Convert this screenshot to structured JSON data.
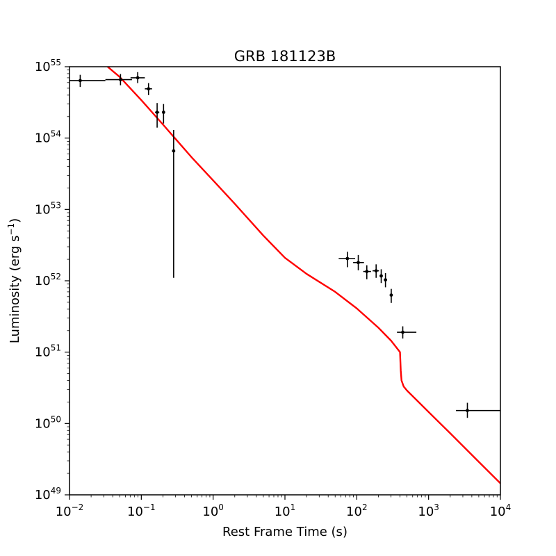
{
  "chart_data": {
    "type": "scatter",
    "title": "GRB 181123B",
    "xlabel": "Rest Frame Time (s)",
    "ylabel": {
      "base": "Luminosity (erg s",
      "sup": "−1",
      "tail": ")"
    },
    "xscale": "log",
    "yscale": "log",
    "xlim": [
      0.01,
      10000
    ],
    "ylim": [
      1e+49,
      1e+55
    ],
    "grid": false,
    "x_ticks": [
      {
        "base": "10",
        "exp": "−2",
        "value": 0.01
      },
      {
        "base": "10",
        "exp": "−1",
        "value": 0.1
      },
      {
        "base": "10",
        "exp": "0",
        "value": 1
      },
      {
        "base": "10",
        "exp": "1",
        "value": 10
      },
      {
        "base": "10",
        "exp": "2",
        "value": 100
      },
      {
        "base": "10",
        "exp": "3",
        "value": 1000
      },
      {
        "base": "10",
        "exp": "4",
        "value": 10000
      }
    ],
    "y_ticks": [
      {
        "base": "10",
        "exp": "49",
        "value": 1e+49
      },
      {
        "base": "10",
        "exp": "50",
        "value": 1e+50
      },
      {
        "base": "10",
        "exp": "51",
        "value": 1e+51
      },
      {
        "base": "10",
        "exp": "52",
        "value": 1e+52
      },
      {
        "base": "10",
        "exp": "53",
        "value": 1e+53
      },
      {
        "base": "10",
        "exp": "54",
        "value": 1e+54
      },
      {
        "base": "10",
        "exp": "55",
        "value": 1e+55
      }
    ],
    "points": [
      {
        "x": 0.0141,
        "y": 6.4e+54,
        "xerr": [
          0.01,
          0.0316
        ],
        "yerr": [
          5.2e+54,
          7.7e+54
        ]
      },
      {
        "x": 0.0513,
        "y": 6.6e+54,
        "xerr": [
          0.0316,
          0.0741
        ],
        "yerr": [
          5.5e+54,
          7.9e+54
        ]
      },
      {
        "x": 0.0891,
        "y": 7e+54,
        "xerr": [
          0.0708,
          0.112
        ],
        "yerr": [
          5.9e+54,
          8.4e+54
        ]
      },
      {
        "x": 0.126,
        "y": 4.9e+54,
        "xerr": [
          0.112,
          0.141
        ],
        "yerr": [
          4e+54,
          5.9e+54
        ]
      },
      {
        "x": 0.166,
        "y": 2.3e+54,
        "xerr": [
          0.155,
          0.178
        ],
        "yerr": [
          1.4e+54,
          3.1e+54
        ]
      },
      {
        "x": 0.204,
        "y": 2.3e+54,
        "xerr": [
          0.195,
          0.214
        ],
        "yerr": [
          1.6e+54,
          3e+54
        ]
      },
      {
        "x": 0.282,
        "y": 6.6e+53,
        "xerr": [
          0.275,
          0.288
        ],
        "yerr": [
          1.1e+52,
          1.3e+54
        ]
      },
      {
        "x": 74,
        "y": 2.05e+52,
        "xerr": [
          56,
          95
        ],
        "yerr": [
          1.55e+52,
          2.55e+52
        ]
      },
      {
        "x": 105,
        "y": 1.8e+52,
        "xerr": [
          89,
          126
        ],
        "yerr": [
          1.4e+52,
          2.3e+52
        ]
      },
      {
        "x": 138,
        "y": 1.35e+52,
        "xerr": [
          123,
          158
        ],
        "yerr": [
          1.05e+52,
          1.65e+52
        ]
      },
      {
        "x": 186,
        "y": 1.38e+52,
        "xerr": [
          166,
          204
        ],
        "yerr": [
          1.1e+52,
          1.7e+52
        ]
      },
      {
        "x": 219,
        "y": 1.17e+52,
        "xerr": [
          209,
          229
        ],
        "yerr": [
          9.3e+51,
          1.45e+52
        ]
      },
      {
        "x": 251,
        "y": 1.03e+52,
        "xerr": [
          240,
          263
        ],
        "yerr": [
          8.1e+51,
          1.28e+52
        ]
      },
      {
        "x": 302,
        "y": 6.3e+51,
        "xerr": [
          288,
          316
        ],
        "yerr": [
          4.9e+51,
          7.7e+51
        ]
      },
      {
        "x": 437,
        "y": 1.9e+51,
        "xerr": [
          363,
          676
        ],
        "yerr": [
          1.55e+51,
          2.3e+51
        ]
      },
      {
        "x": 3470,
        "y": 1.52e+50,
        "xerr": [
          2400,
          10000
        ],
        "yerr": [
          1.2e+50,
          1.95e+50
        ]
      }
    ],
    "model_curve": {
      "color": "#ff0000",
      "x": [
        0.0339,
        0.05,
        0.1,
        0.2,
        0.5,
        1,
        2,
        5,
        10,
        20,
        50,
        100,
        200,
        300,
        400,
        410,
        420,
        450,
        500,
        1000,
        2000,
        5000,
        10000
      ],
      "y": [
        1e+55,
        7.2e+54,
        3.4e+54,
        1.55e+54,
        5.4e+53,
        2.55e+53,
        1.2e+53,
        4.3e+52,
        2.1e+52,
        1.25e+52,
        7e+51,
        4.1e+51,
        2.2e+51,
        1.45e+51,
        1e+51,
        5.5e+50,
        4e+50,
        3.3e+50,
        2.9e+50,
        1.45e+50,
        7.3e+49,
        2.9e+49,
        1.45e+49
      ]
    }
  }
}
